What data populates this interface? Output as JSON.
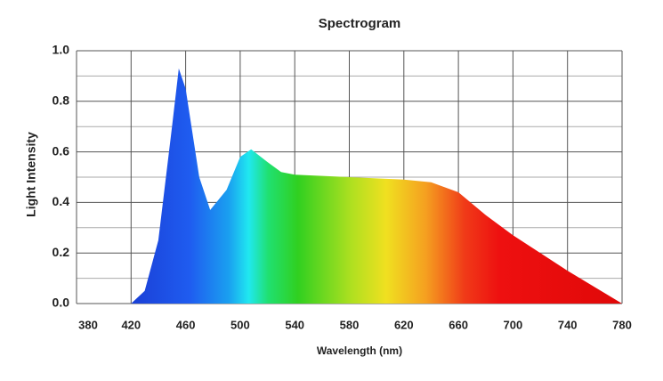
{
  "chart_data": {
    "type": "area",
    "title": "Spectrogram",
    "x_label": "Wavelength (nm)",
    "y_label": "Light Intensity",
    "x": [
      420,
      430,
      440,
      450,
      455,
      460,
      470,
      478,
      490,
      500,
      508,
      520,
      530,
      540,
      580,
      620,
      640,
      660,
      680,
      700,
      740,
      780
    ],
    "values": [
      0.0,
      0.05,
      0.25,
      0.7,
      0.93,
      0.85,
      0.5,
      0.37,
      0.45,
      0.58,
      0.61,
      0.56,
      0.52,
      0.51,
      0.5,
      0.49,
      0.48,
      0.44,
      0.35,
      0.27,
      0.13,
      0.0
    ],
    "xlim": [
      380,
      780
    ],
    "ylim": [
      0,
      1
    ],
    "xticks": [
      380,
      420,
      460,
      500,
      540,
      580,
      620,
      660,
      700,
      740,
      780
    ],
    "yticks": [
      {
        "value": 0,
        "label": "0.0"
      },
      0.2,
      0.4,
      0.6,
      0.8,
      {
        "value": 1,
        "label": "1.0"
      }
    ],
    "y_minor_ticks": [
      0.1,
      0.3,
      0.5,
      0.7,
      0.9
    ],
    "grid": true
  }
}
